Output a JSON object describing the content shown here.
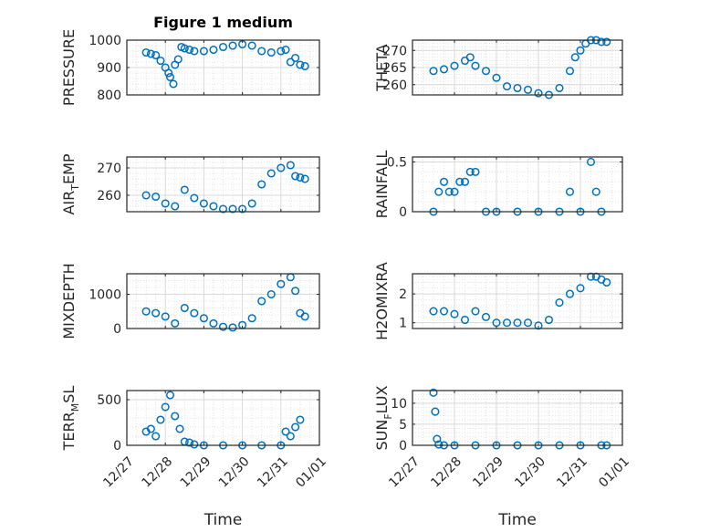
{
  "figure": {
    "title": "Figure 1 medium",
    "xlabel": "Time",
    "date_ticks": [
      "12/27",
      "12/28",
      "12/29",
      "12/30",
      "12/31",
      "01/01"
    ]
  },
  "colors": {
    "marker": "#0072BD",
    "axis": "#262626",
    "grid": "#d9d9d9"
  },
  "chart_data": [
    {
      "type": "scatter",
      "ylabel": "PRESSURE",
      "title": "Figure 1 medium",
      "xlim": [
        "12/27",
        "01/01"
      ],
      "ylim": [
        800,
        1000
      ],
      "yticks": [
        800,
        900,
        1000
      ],
      "grid": true,
      "x": [
        "12/27 12:00",
        "12/27 15:00",
        "12/27 18:00",
        "12/27 21:00",
        "12/28 00:00",
        "12/28 02:00",
        "12/28 03:00",
        "12/28 05:00",
        "12/28 06:00",
        "12/28 08:00",
        "12/28 10:00",
        "12/28 12:00",
        "12/28 15:00",
        "12/28 18:00",
        "12/29 00:00",
        "12/29 06:00",
        "12/29 12:00",
        "12/29 18:00",
        "12/30 00:00",
        "12/30 06:00",
        "12/30 12:00",
        "12/30 18:00",
        "12/31 00:00",
        "12/31 03:00",
        "12/31 06:00",
        "12/31 09:00",
        "12/31 12:00",
        "12/31 15:00"
      ],
      "y": [
        955,
        950,
        945,
        925,
        900,
        880,
        865,
        840,
        910,
        930,
        975,
        970,
        965,
        960,
        960,
        965,
        975,
        980,
        985,
        980,
        960,
        955,
        960,
        965,
        920,
        935,
        910,
        905
      ]
    },
    {
      "type": "scatter",
      "ylabel": "THETA",
      "xlim": [
        "12/27",
        "01/01"
      ],
      "ylim": [
        257,
        273
      ],
      "yticks": [
        260,
        265,
        270
      ],
      "grid": true,
      "x": [
        "12/27 12:00",
        "12/27 18:00",
        "12/28 00:00",
        "12/28 06:00",
        "12/28 09:00",
        "12/28 12:00",
        "12/28 18:00",
        "12/29 00:00",
        "12/29 06:00",
        "12/29 12:00",
        "12/29 18:00",
        "12/30 00:00",
        "12/30 06:00",
        "12/30 12:00",
        "12/30 18:00",
        "12/30 21:00",
        "12/31 00:00",
        "12/31 03:00",
        "12/31 06:00",
        "12/31 09:00",
        "12/31 12:00",
        "12/31 15:00"
      ],
      "y": [
        264,
        264.5,
        265.5,
        267,
        268,
        265.5,
        264,
        262,
        259.5,
        259,
        258.5,
        257.5,
        257,
        259,
        264,
        268,
        270,
        272,
        273,
        273,
        272.5,
        272.5
      ]
    },
    {
      "type": "scatter",
      "ylabel": "AIR_TEMP",
      "ylabel_display": "AIR",
      "ylabel_sub": "T",
      "ylabel_tail": "EMP",
      "xlim": [
        "12/27",
        "01/01"
      ],
      "ylim": [
        254,
        274
      ],
      "yticks": [
        260,
        270
      ],
      "grid": true,
      "x": [
        "12/27 12:00",
        "12/27 18:00",
        "12/28 00:00",
        "12/28 06:00",
        "12/28 12:00",
        "12/28 18:00",
        "12/29 00:00",
        "12/29 06:00",
        "12/29 12:00",
        "12/29 18:00",
        "12/30 00:00",
        "12/30 06:00",
        "12/30 12:00",
        "12/30 18:00",
        "12/31 00:00",
        "12/31 06:00",
        "12/31 09:00",
        "12/31 12:00",
        "12/31 15:00"
      ],
      "y": [
        260,
        259.5,
        257,
        256,
        262,
        259,
        257,
        256,
        255,
        255,
        255,
        257,
        264,
        268,
        270,
        271,
        267,
        266.5,
        266
      ]
    },
    {
      "type": "scatter",
      "ylabel": "RAINFALL",
      "xlim": [
        "12/27",
        "01/01"
      ],
      "ylim": [
        0,
        0.55
      ],
      "yticks": [
        0,
        0.5
      ],
      "grid": true,
      "x": [
        "12/27 12:00",
        "12/27 15:00",
        "12/27 18:00",
        "12/27 21:00",
        "12/28 00:00",
        "12/28 03:00",
        "12/28 06:00",
        "12/28 09:00",
        "12/28 12:00",
        "12/28 18:00",
        "12/29 00:00",
        "12/29 12:00",
        "12/30 00:00",
        "12/30 12:00",
        "12/30 18:00",
        "12/31 00:00",
        "12/31 06:00",
        "12/31 09:00",
        "12/31 12:00"
      ],
      "y": [
        0,
        0.2,
        0.3,
        0.2,
        0.2,
        0.3,
        0.3,
        0.4,
        0.4,
        0,
        0,
        0,
        0,
        0,
        0.2,
        0,
        0.5,
        0.2,
        0
      ]
    },
    {
      "type": "scatter",
      "ylabel": "MIXDEPTH",
      "xlim": [
        "12/27",
        "01/01"
      ],
      "ylim": [
        0,
        1600
      ],
      "yticks": [
        0,
        1000
      ],
      "grid": true,
      "x": [
        "12/27 12:00",
        "12/27 18:00",
        "12/28 00:00",
        "12/28 06:00",
        "12/28 12:00",
        "12/28 18:00",
        "12/29 00:00",
        "12/29 06:00",
        "12/29 12:00",
        "12/29 18:00",
        "12/30 00:00",
        "12/30 06:00",
        "12/30 12:00",
        "12/30 18:00",
        "12/31 00:00",
        "12/31 06:00",
        "12/31 09:00",
        "12/31 12:00",
        "12/31 15:00"
      ],
      "y": [
        500,
        450,
        350,
        150,
        600,
        450,
        300,
        150,
        50,
        30,
        100,
        300,
        800,
        1000,
        1300,
        1500,
        1100,
        450,
        350
      ]
    },
    {
      "type": "scatter",
      "ylabel": "H2OMIXRA",
      "xlim": [
        "12/27",
        "01/01"
      ],
      "ylim": [
        0.8,
        2.7
      ],
      "yticks": [
        1,
        2
      ],
      "grid": true,
      "x": [
        "12/27 12:00",
        "12/27 18:00",
        "12/28 00:00",
        "12/28 06:00",
        "12/28 12:00",
        "12/28 18:00",
        "12/29 00:00",
        "12/29 06:00",
        "12/29 12:00",
        "12/29 18:00",
        "12/30 00:00",
        "12/30 06:00",
        "12/30 12:00",
        "12/30 18:00",
        "12/31 00:00",
        "12/31 06:00",
        "12/31 09:00",
        "12/31 12:00",
        "12/31 15:00"
      ],
      "y": [
        1.4,
        1.4,
        1.3,
        1.1,
        1.4,
        1.2,
        1.0,
        1.0,
        1.0,
        1.0,
        0.9,
        1.1,
        1.7,
        2.0,
        2.2,
        2.6,
        2.6,
        2.5,
        2.4
      ]
    },
    {
      "type": "scatter",
      "ylabel": "TERR_MSL",
      "ylabel_display": "TERR",
      "ylabel_sub": "M",
      "ylabel_tail": "SL",
      "xlim": [
        "12/27",
        "01/01"
      ],
      "ylim": [
        0,
        600
      ],
      "yticks": [
        0,
        500
      ],
      "grid": true,
      "x": [
        "12/27 12:00",
        "12/27 15:00",
        "12/27 18:00",
        "12/27 21:00",
        "12/28 00:00",
        "12/28 03:00",
        "12/28 06:00",
        "12/28 09:00",
        "12/28 12:00",
        "12/28 15:00",
        "12/28 18:00",
        "12/29 00:00",
        "12/29 12:00",
        "12/30 00:00",
        "12/30 12:00",
        "12/31 00:00",
        "12/31 03:00",
        "12/31 06:00",
        "12/31 09:00",
        "12/31 12:00"
      ],
      "y": [
        150,
        180,
        100,
        280,
        420,
        550,
        320,
        180,
        40,
        30,
        10,
        0,
        0,
        0,
        0,
        0,
        150,
        100,
        200,
        280
      ]
    },
    {
      "type": "scatter",
      "ylabel": "SUN_FLUX",
      "ylabel_display": "SUN",
      "ylabel_sub": "F",
      "ylabel_tail": "LUX",
      "xlim": [
        "12/27",
        "01/01"
      ],
      "ylim": [
        0,
        13
      ],
      "yticks": [
        0,
        5,
        10
      ],
      "grid": true,
      "x": [
        "12/27 12:00",
        "12/27 13:00",
        "12/27 14:00",
        "12/27 15:00",
        "12/27 18:00",
        "12/28 00:00",
        "12/28 12:00",
        "12/29 00:00",
        "12/29 12:00",
        "12/30 00:00",
        "12/30 12:00",
        "12/31 00:00",
        "12/31 12:00",
        "12/31 15:00"
      ],
      "y": [
        12.5,
        8,
        1.5,
        0.2,
        0,
        0,
        0,
        0,
        0,
        0,
        0,
        0,
        0,
        0
      ]
    }
  ]
}
